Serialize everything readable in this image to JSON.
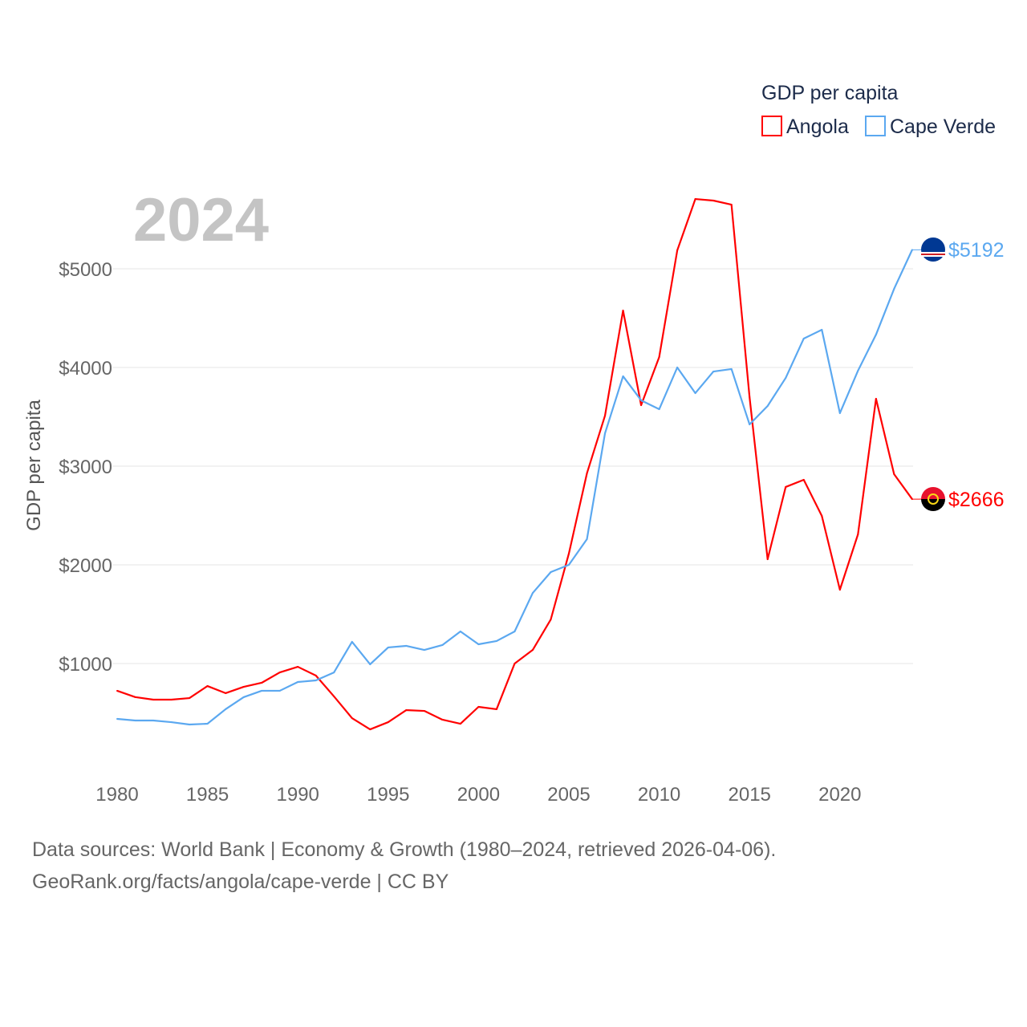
{
  "chart_data": {
    "type": "line",
    "title": "GDP per capita",
    "ylabel": "GDP per capita",
    "xlabel": "",
    "year_label": "2024",
    "xlim": [
      1980,
      2024
    ],
    "ylim": [
      0,
      5800
    ],
    "x_ticks": [
      "1980",
      "1985",
      "1990",
      "1995",
      "2000",
      "2005",
      "2010",
      "2015",
      "2020"
    ],
    "y_ticks": [
      "$1000",
      "$2000",
      "$3000",
      "$4000",
      "$5000"
    ],
    "y_tick_values": [
      1000,
      2000,
      3000,
      4000,
      5000
    ],
    "grid": true,
    "legend_position": "top-right",
    "x": [
      1980,
      1981,
      1982,
      1983,
      1984,
      1985,
      1986,
      1987,
      1988,
      1989,
      1990,
      1991,
      1992,
      1993,
      1994,
      1995,
      1996,
      1997,
      1998,
      1999,
      2000,
      2001,
      2002,
      2003,
      2004,
      2005,
      2006,
      2007,
      2008,
      2009,
      2010,
      2011,
      2012,
      2013,
      2014,
      2015,
      2016,
      2017,
      2018,
      2019,
      2020,
      2021,
      2022,
      2023,
      2024
    ],
    "series": [
      {
        "name": "Angola",
        "color": "#ff0000",
        "end_label": "$2666",
        "values": [
          724,
          660,
          634,
          634,
          650,
          772,
          700,
          764,
          805,
          910,
          967,
          878,
          667,
          447,
          333,
          406,
          528,
          520,
          431,
          390,
          561,
          537,
          1000,
          1138,
          1447,
          2114,
          2927,
          3512,
          4577,
          3618,
          4106,
          5187,
          5707,
          5691,
          5650,
          3700,
          2057,
          2789,
          2862,
          2496,
          1748,
          2309,
          3683,
          2919,
          2666
        ]
      },
      {
        "name": "Cape Verde",
        "color": "#5ba8f0",
        "end_label": "$5192",
        "values": [
          439,
          423,
          423,
          406,
          382,
          390,
          537,
          659,
          724,
          724,
          813,
          829,
          910,
          1220,
          992,
          1163,
          1179,
          1138,
          1187,
          1325,
          1195,
          1228,
          1325,
          1715,
          1927,
          2000,
          2260,
          3333,
          3911,
          3667,
          3577,
          4000,
          3740,
          3959,
          3984,
          3423,
          3610,
          3894,
          4293,
          4382,
          3537,
          3967,
          4333,
          4797,
          5192
        ]
      }
    ]
  },
  "footer": {
    "line1": "Data sources: World Bank | Economy & Growth (1980–2024, retrieved 2026-04-06).",
    "line2": "GeoRank.org/facts/angola/cape-verde | CC BY"
  }
}
